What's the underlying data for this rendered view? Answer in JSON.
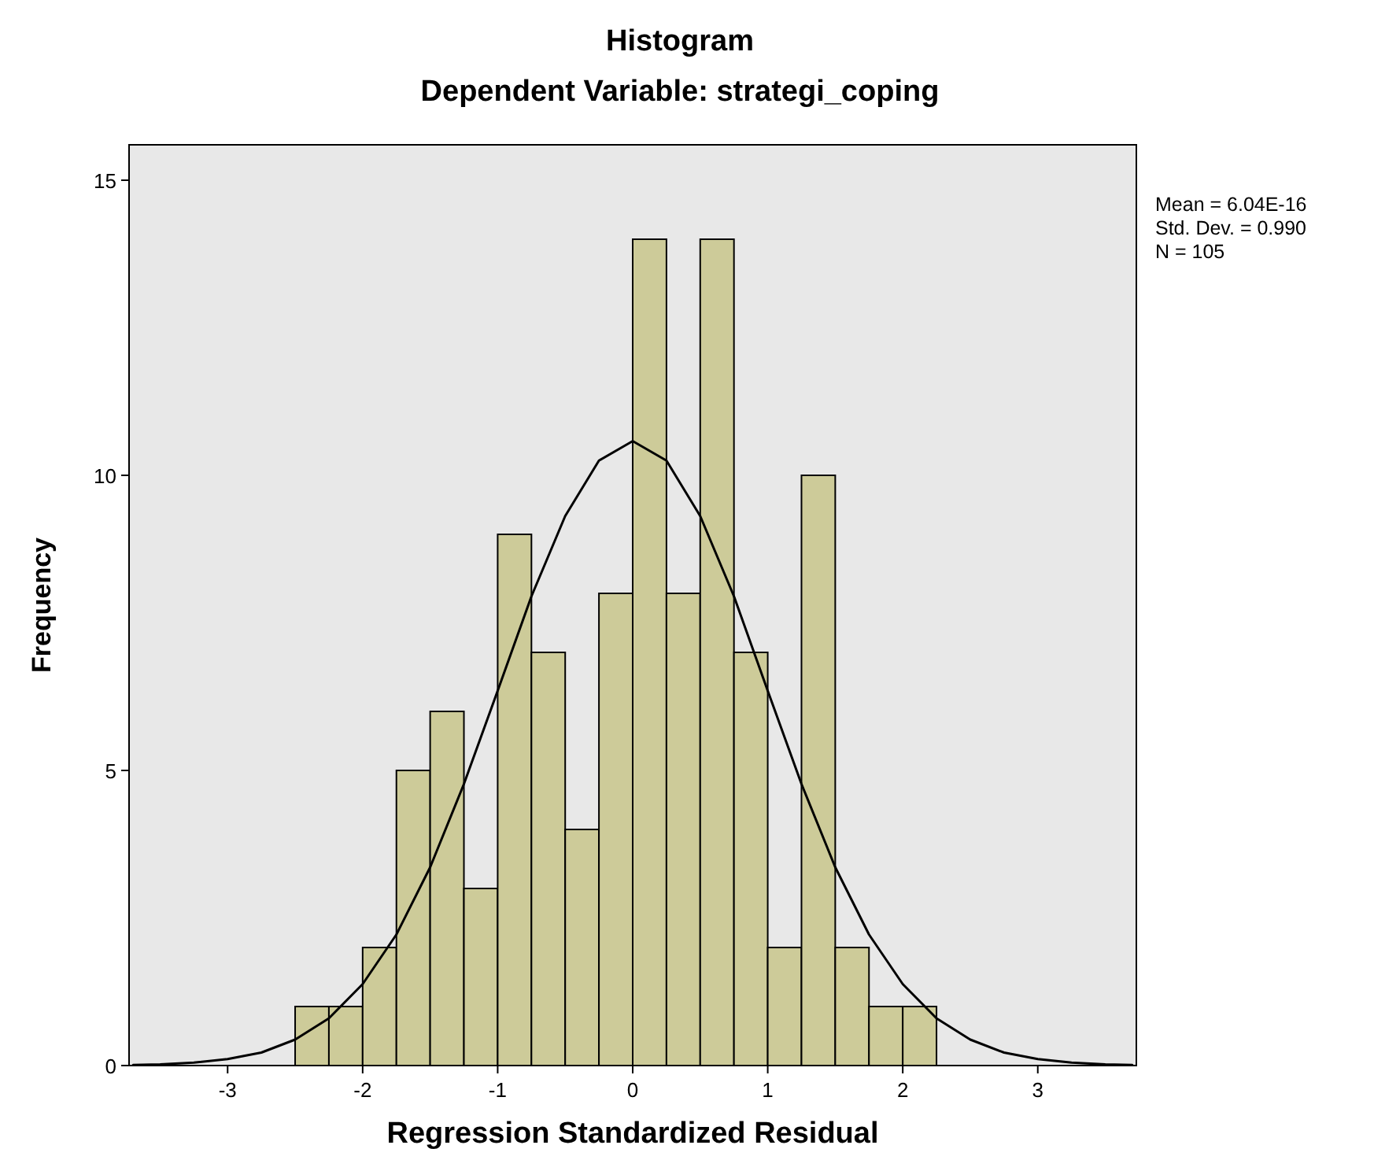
{
  "chart_data": {
    "type": "histogram",
    "title": "Histogram",
    "subtitle": "Dependent Variable: strategi_coping",
    "xlabel": "Regression Standardized Residual",
    "ylabel": "Frequency",
    "bins": [
      -2.5,
      -2.25,
      -2,
      -1.75,
      -1.5,
      -1.25,
      -1,
      -0.75,
      -0.5,
      -0.25,
      0,
      0.25,
      0.5,
      0.75,
      1,
      1.25,
      1.5,
      1.75,
      2,
      2.25
    ],
    "series": [
      {
        "color": "#cdcb99",
        "values": [
          1,
          1,
          2,
          5,
          6,
          3,
          9,
          7,
          4,
          8,
          14,
          8,
          14,
          7,
          2,
          10,
          2,
          1,
          1
        ]
      },
      {
        "type": "line",
        "color": "#000000",
        "x": [
          -3.7,
          -3.5,
          -3.25,
          -3,
          -2.75,
          -2.5,
          -2.25,
          -2,
          -1.75,
          -1.5,
          -1.25,
          -1,
          -0.75,
          -0.5,
          -0.25,
          0,
          0.25,
          0.5,
          0.75,
          1,
          1.25,
          1.5,
          1.75,
          2,
          2.25,
          2.5,
          2.75,
          3,
          3.25,
          3.5,
          3.7
        ],
        "values": [
          0.01,
          0.02,
          0.05,
          0.11,
          0.22,
          0.44,
          0.8,
          1.38,
          2.22,
          3.36,
          4.77,
          6.35,
          7.95,
          9.31,
          10.25,
          10.58,
          10.25,
          9.31,
          7.95,
          6.35,
          4.77,
          3.36,
          2.22,
          1.38,
          0.8,
          0.44,
          0.22,
          0.11,
          0.05,
          0.02,
          0.01
        ]
      }
    ],
    "marker": "none",
    "line_style": "solid",
    "grid": false,
    "xlim": [
      -3.73,
      3.73
    ],
    "xticks": [
      -3,
      -2,
      -1,
      0,
      1,
      2,
      3
    ],
    "ylim": [
      0,
      15.6
    ],
    "yticks": [
      0,
      5,
      10,
      15
    ],
    "annotations": [
      "Mean = 6.04E-16",
      "Std. Dev. = 0.990",
      "N = 105"
    ]
  }
}
